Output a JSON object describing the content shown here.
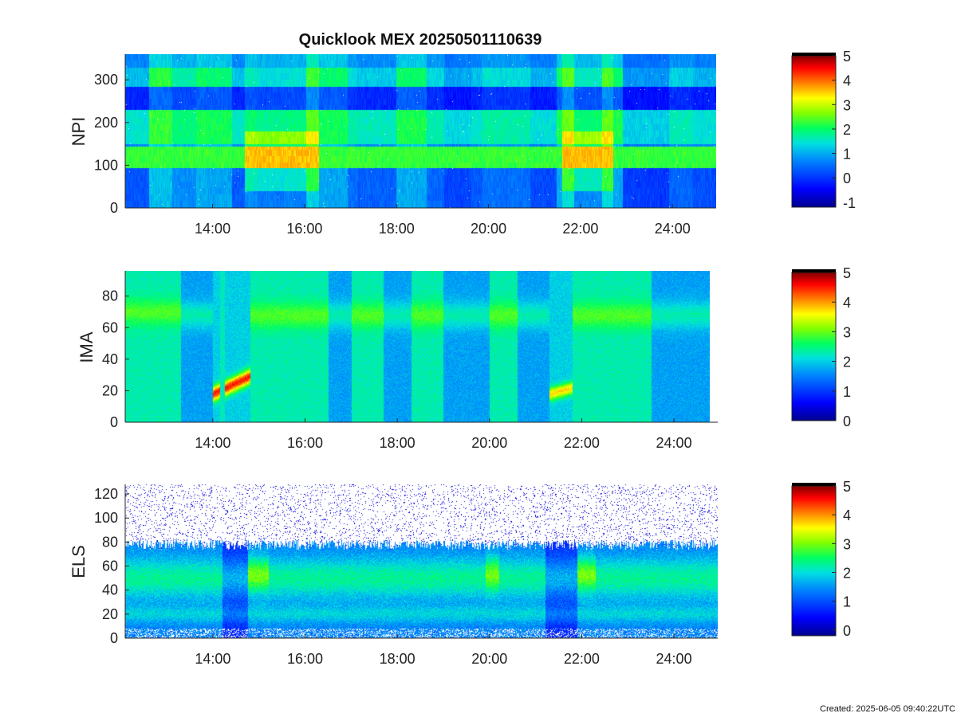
{
  "chart_data": [
    {
      "type": "heatmap",
      "title": "Quicklook MEX 20250501110639",
      "ylabel": "NPI",
      "xlabel": "",
      "ylim": [
        0,
        360
      ],
      "yticks": [
        0,
        100,
        200,
        300
      ],
      "xticks": [
        "14:00",
        "16:00",
        "18:00",
        "20:00",
        "22:00",
        "24:00"
      ],
      "x_tick_hours": [
        14,
        16,
        18,
        20,
        22,
        24
      ],
      "xlim_hours": [
        12.1,
        24.95
      ],
      "data_x_end_hours": 24.95,
      "colorbar": {
        "range": [
          -1.2,
          5
        ],
        "ticks": [
          -1,
          0,
          1,
          2,
          3,
          4,
          5
        ]
      },
      "legend": ""
    },
    {
      "type": "heatmap",
      "title": "",
      "ylabel": "IMA",
      "xlabel": "",
      "ylim": [
        0,
        96
      ],
      "yticks": [
        0,
        20,
        40,
        60,
        80
      ],
      "xticks": [
        "14:00",
        "16:00",
        "18:00",
        "20:00",
        "22:00",
        "24:00"
      ],
      "x_tick_hours": [
        14,
        16,
        18,
        20,
        22,
        24
      ],
      "xlim_hours": [
        12.1,
        24.95
      ],
      "data_x_end_hours": 24.8,
      "colorbar": {
        "range": [
          0,
          5
        ],
        "ticks": [
          0,
          1,
          2,
          3,
          4,
          5
        ]
      },
      "legend": ""
    },
    {
      "type": "heatmap",
      "title": "",
      "ylabel": "ELS",
      "xlabel": "",
      "ylim": [
        0,
        128
      ],
      "yticks": [
        0,
        20,
        40,
        60,
        80,
        100,
        120
      ],
      "xticks": [
        "14:00",
        "16:00",
        "18:00",
        "20:00",
        "22:00",
        "24:00"
      ],
      "x_tick_hours": [
        14,
        16,
        18,
        20,
        22,
        24
      ],
      "xlim_hours": [
        12.1,
        24.95
      ],
      "data_x_end_hours": 24.95,
      "colorbar": {
        "range": [
          -0.2,
          5
        ],
        "ticks": [
          0,
          1,
          2,
          3,
          4,
          5
        ]
      },
      "legend": ""
    }
  ],
  "footer": {
    "created": "Created: 2025-06-05 09:40:22UTC"
  },
  "colors": {
    "colormap": [
      "#00008f",
      "#0000ff",
      "#0080ff",
      "#00ffff",
      "#00ff80",
      "#80ff00",
      "#ffff00",
      "#ff8000",
      "#ff0000",
      "#800000"
    ],
    "colormap_top": "#000000",
    "empty": "#ffffff"
  }
}
